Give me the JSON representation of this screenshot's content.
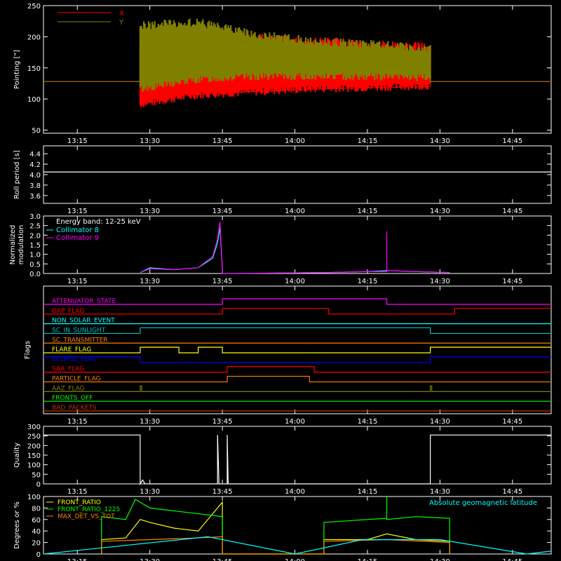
{
  "colors": {
    "background": "#000000",
    "axes": "#ffffff",
    "red": "#ff0000",
    "olive": "#808000",
    "cyan": "#00ffff",
    "magenta": "#ff00ff",
    "yellow": "#ffff00",
    "green": "#00ff00",
    "orange": "#ff8000",
    "blue": "#0000ff",
    "teal": "#00c0c0",
    "brick": "#c03000"
  },
  "time_axis": {
    "range": [
      "13:08",
      "14:53"
    ],
    "ticks": [
      "13:15",
      "13:30",
      "13:45",
      "14:00",
      "14:15",
      "14:30",
      "14:45"
    ]
  },
  "chart_data": [
    {
      "id": "pointing",
      "type": "line",
      "ylabel": "Pointing [\"]",
      "ylim": [
        45,
        250
      ],
      "yticks": [
        50,
        100,
        150,
        200,
        250
      ],
      "legend": [
        {
          "name": "X",
          "color": "#ff0000"
        },
        {
          "name": "Y",
          "color": "#808000"
        }
      ],
      "legend_position": "top-left",
      "grid": false,
      "series": [
        {
          "name": "X",
          "color": "#ff0000",
          "x": [
            "13:08",
            "13:28",
            "13:28",
            "13:35",
            "13:45",
            "14:00",
            "14:15",
            "14:28",
            "14:28",
            "14:53"
          ],
          "y": [
            128,
            128,
            90,
            105,
            110,
            115,
            118,
            120,
            128,
            128
          ],
          "band": {
            "from": "13:28",
            "to": "14:28",
            "lower": [
              85,
              100,
              105,
              110,
              112,
              115
            ],
            "upper": [
              195,
              200,
              205,
              200,
              195,
              190
            ]
          }
        },
        {
          "name": "Y",
          "color": "#808000",
          "x": [
            "13:08",
            "13:28",
            "13:28",
            "13:45",
            "14:00",
            "14:15",
            "14:28",
            "14:28",
            "14:53"
          ],
          "y": [
            128,
            128,
            170,
            175,
            160,
            155,
            150,
            128,
            128
          ],
          "band": {
            "from": "13:28",
            "to": "14:28",
            "lower": [
              110,
              125,
              130,
              130,
              130,
              128
            ],
            "upper": [
              225,
              230,
              210,
              200,
              195,
              190
            ]
          }
        }
      ]
    },
    {
      "id": "roll",
      "type": "line",
      "ylabel": "Roll period [s]",
      "ylim": [
        3.45,
        4.55
      ],
      "yticks": [
        3.6,
        3.8,
        4.0,
        4.2,
        4.4
      ],
      "ytick_labels": [
        "3.6",
        "3.8",
        "4.0",
        "4.2",
        "4.4"
      ],
      "series": [
        {
          "name": "",
          "color": "#ffffff",
          "x": [
            "13:08",
            "14:53"
          ],
          "y": [
            4.05,
            4.05
          ]
        }
      ]
    },
    {
      "id": "modulation",
      "type": "line",
      "ylabel": "Normalized modulation",
      "ylabel_lines": [
        "Normalized",
        "modulation"
      ],
      "ylim": [
        0,
        3.0
      ],
      "yticks": [
        0,
        0.5,
        1.0,
        1.5,
        2.0,
        2.5,
        3.0
      ],
      "ytick_labels": [
        "0.0",
        "0.5",
        "1.0",
        "1.5",
        "2.0",
        "2.5",
        "3.0"
      ],
      "annotation": "Energy band: 12-25 keV",
      "legend": [
        {
          "name": "Collimator 8",
          "color": "#00ffff"
        },
        {
          "name": "Collimator 9",
          "color": "#ff00ff"
        }
      ],
      "series": [
        {
          "name": "Collimator 8",
          "color": "#00ffff",
          "x": [
            "13:28",
            "13:30",
            "13:35",
            "13:40",
            "13:43",
            "13:44",
            "13:44.5",
            "13:45",
            "13:45",
            "14:07",
            "14:15",
            "14:19",
            "14:25",
            "14:32"
          ],
          "y": [
            0.05,
            0.3,
            0.2,
            0.3,
            0.8,
            1.6,
            2.4,
            0.2,
            0.0,
            0.05,
            0.1,
            0.15,
            0.1,
            0.05
          ]
        },
        {
          "name": "Collimator 9",
          "color": "#ff00ff",
          "x": [
            "13:28",
            "13:30",
            "13:35",
            "13:40",
            "13:43",
            "13:44",
            "13:44.5",
            "13:45",
            "13:45",
            "14:07",
            "14:15",
            "14:19",
            "14:19",
            "14:19",
            "14:25",
            "14:32"
          ],
          "y": [
            0.05,
            0.25,
            0.2,
            0.3,
            0.9,
            1.8,
            2.7,
            0.2,
            0.0,
            0.05,
            0.1,
            0.1,
            2.2,
            0.15,
            0.1,
            0.05
          ]
        }
      ]
    },
    {
      "id": "flags",
      "type": "line",
      "ylabel": "Flags",
      "series": [
        {
          "name": "ATTENUATOR_STATE",
          "color": "#ff00ff",
          "steps": [
            [
              "13:08",
              0
            ],
            [
              "13:45",
              1
            ],
            [
              "14:19",
              0
            ]
          ]
        },
        {
          "name": "GAP_FLAG",
          "color": "#ff0000",
          "steps": [
            [
              "13:08",
              0
            ],
            [
              "13:45",
              1
            ],
            [
              "14:07",
              0
            ],
            [
              "14:33",
              1
            ]
          ]
        },
        {
          "name": "NON_SOLAR_EVENT",
          "color": "#00ffff",
          "steps": [
            [
              "13:08",
              0
            ]
          ]
        },
        {
          "name": "SC_IN_SUNLIGHT",
          "color": "#00c0c0",
          "steps": [
            [
              "13:08",
              0
            ],
            [
              "13:28",
              1
            ],
            [
              "14:28",
              0
            ]
          ]
        },
        {
          "name": "SC_TRANSMITTER",
          "color": "#ff8000",
          "steps": [
            [
              "13:08",
              0
            ]
          ]
        },
        {
          "name": "FLARE_FLAG",
          "color": "#ffff00",
          "steps": [
            [
              "13:08",
              0
            ],
            [
              "13:28",
              1
            ],
            [
              "13:36",
              0
            ],
            [
              "13:40",
              1
            ],
            [
              "13:45",
              0
            ],
            [
              "14:28",
              1
            ]
          ]
        },
        {
          "name": "ECLIPSE_FLAG",
          "color": "#0000ff",
          "steps": [
            [
              "13:08",
              1
            ],
            [
              "13:28",
              0
            ],
            [
              "14:28",
              1
            ]
          ]
        },
        {
          "name": "SAA_FLAG",
          "color": "#ff0000",
          "steps": [
            [
              "13:08",
              0
            ],
            [
              "13:46",
              1
            ],
            [
              "14:04",
              0
            ]
          ]
        },
        {
          "name": "PARTICLE_FLAG",
          "color": "#ff8000",
          "steps": [
            [
              "13:08",
              0
            ],
            [
              "13:46",
              1
            ],
            [
              "14:03",
              0
            ]
          ]
        },
        {
          "name": "AAZ_FLAG",
          "color": "#808000",
          "steps": [
            [
              "13:08",
              0
            ],
            [
              "13:28",
              1
            ],
            [
              "13:28.3",
              0
            ],
            [
              "14:28",
              1
            ],
            [
              "14:28.3",
              0
            ]
          ]
        },
        {
          "name": "FRONTS_OFF",
          "color": "#00ff00",
          "steps": [
            [
              "13:08",
              0
            ]
          ]
        },
        {
          "name": "BAD_PACKETS",
          "color": "#c03000",
          "steps": [
            [
              "13:08",
              0
            ]
          ]
        }
      ]
    },
    {
      "id": "quality",
      "type": "line",
      "ylabel": "Quality",
      "ylim": [
        0,
        300
      ],
      "yticks": [
        0,
        50,
        100,
        150,
        200,
        250,
        300
      ],
      "series": [
        {
          "name": "",
          "color": "#ffffff",
          "x": [
            "13:08",
            "13:28",
            "13:28",
            "13:28.5",
            "13:29",
            "13:44",
            "13:44",
            "13:44.3",
            "13:46",
            "13:46",
            "13:46.2",
            "14:28",
            "14:28",
            "14:53"
          ],
          "y": [
            255,
            255,
            0,
            20,
            0,
            0,
            255,
            0,
            0,
            255,
            0,
            0,
            255,
            255
          ]
        }
      ]
    },
    {
      "id": "ratios",
      "type": "line",
      "ylabel": "Degrees or %",
      "ylim": [
        0,
        100
      ],
      "yticks": [
        0,
        20,
        40,
        60,
        80,
        100
      ],
      "annotation": "Absolute geomagnetic latitude",
      "legend": [
        {
          "name": "FRONT_RATIO",
          "color": "#ffff00"
        },
        {
          "name": "FRONT_RATIO_1225",
          "color": "#00ff00"
        },
        {
          "name": "MAX_DET_VS_TOT",
          "color": "#ff8000"
        }
      ],
      "series": [
        {
          "name": "FRONT_RATIO",
          "color": "#ffff00",
          "x": [
            "13:20",
            "13:20",
            "13:25",
            "13:28",
            "13:30",
            "13:35",
            "13:40",
            "13:43",
            "13:45",
            "13:45",
            "14:06",
            "14:06",
            "14:15",
            "14:19",
            "14:25",
            "14:32",
            "14:32"
          ],
          "y": [
            0,
            25,
            28,
            60,
            55,
            45,
            40,
            70,
            90,
            0,
            0,
            25,
            25,
            35,
            25,
            22,
            0
          ]
        },
        {
          "name": "FRONT_RATIO_1225",
          "color": "#00ff00",
          "x": [
            "13:20",
            "13:20",
            "13:25",
            "13:27",
            "13:30",
            "13:35",
            "13:45",
            "13:45",
            "14:06",
            "14:06",
            "14:15",
            "14:19",
            "14:19",
            "14:19",
            "14:25",
            "14:32",
            "14:32"
          ],
          "y": [
            0,
            65,
            60,
            95,
            80,
            75,
            65,
            0,
            0,
            55,
            60,
            62,
            100,
            60,
            65,
            62,
            0
          ]
        },
        {
          "name": "MAX_DET_VS_TOT",
          "color": "#ff8000",
          "x": [
            "13:20",
            "13:20",
            "13:30",
            "13:40",
            "13:45",
            "13:45",
            "14:06",
            "14:06",
            "14:19",
            "14:32",
            "14:32"
          ],
          "y": [
            0,
            22,
            25,
            28,
            30,
            0,
            0,
            22,
            25,
            20,
            0
          ]
        },
        {
          "name": "Absolute geomagnetic latitude",
          "color": "#00ffff",
          "x": [
            "13:08",
            "13:42",
            "14:00",
            "14:14",
            "14:30",
            "14:48",
            "14:53"
          ],
          "y": [
            0,
            30,
            0,
            25,
            25,
            0,
            5
          ]
        }
      ]
    }
  ]
}
